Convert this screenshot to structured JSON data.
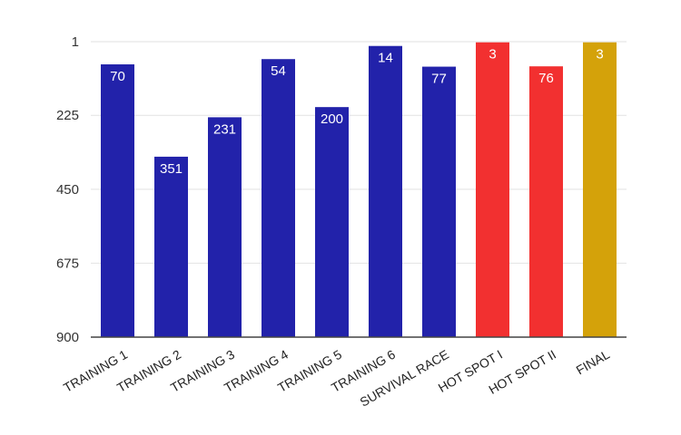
{
  "chart_data": {
    "type": "bar",
    "title": "",
    "xlabel": "",
    "ylabel": "",
    "y_reversed": true,
    "ylim": [
      1,
      900
    ],
    "yticks": [
      1,
      225,
      450,
      675,
      900
    ],
    "grid": true,
    "legend": "none",
    "categories": [
      "TRAINING 1",
      "TRAINING 2",
      "TRAINING 3",
      "TRAINING 4",
      "TRAINING 5",
      "TRAINING 6",
      "SURVIVAL RACE",
      "HOT SPOT I",
      "HOT SPOT II",
      "FINAL"
    ],
    "values": [
      70,
      351,
      231,
      54,
      200,
      14,
      77,
      3,
      76,
      3
    ],
    "colors": [
      "#2222aa",
      "#2222aa",
      "#2222aa",
      "#2222aa",
      "#2222aa",
      "#2222aa",
      "#2222aa",
      "#f23030",
      "#f23030",
      "#d4a20a"
    ]
  }
}
